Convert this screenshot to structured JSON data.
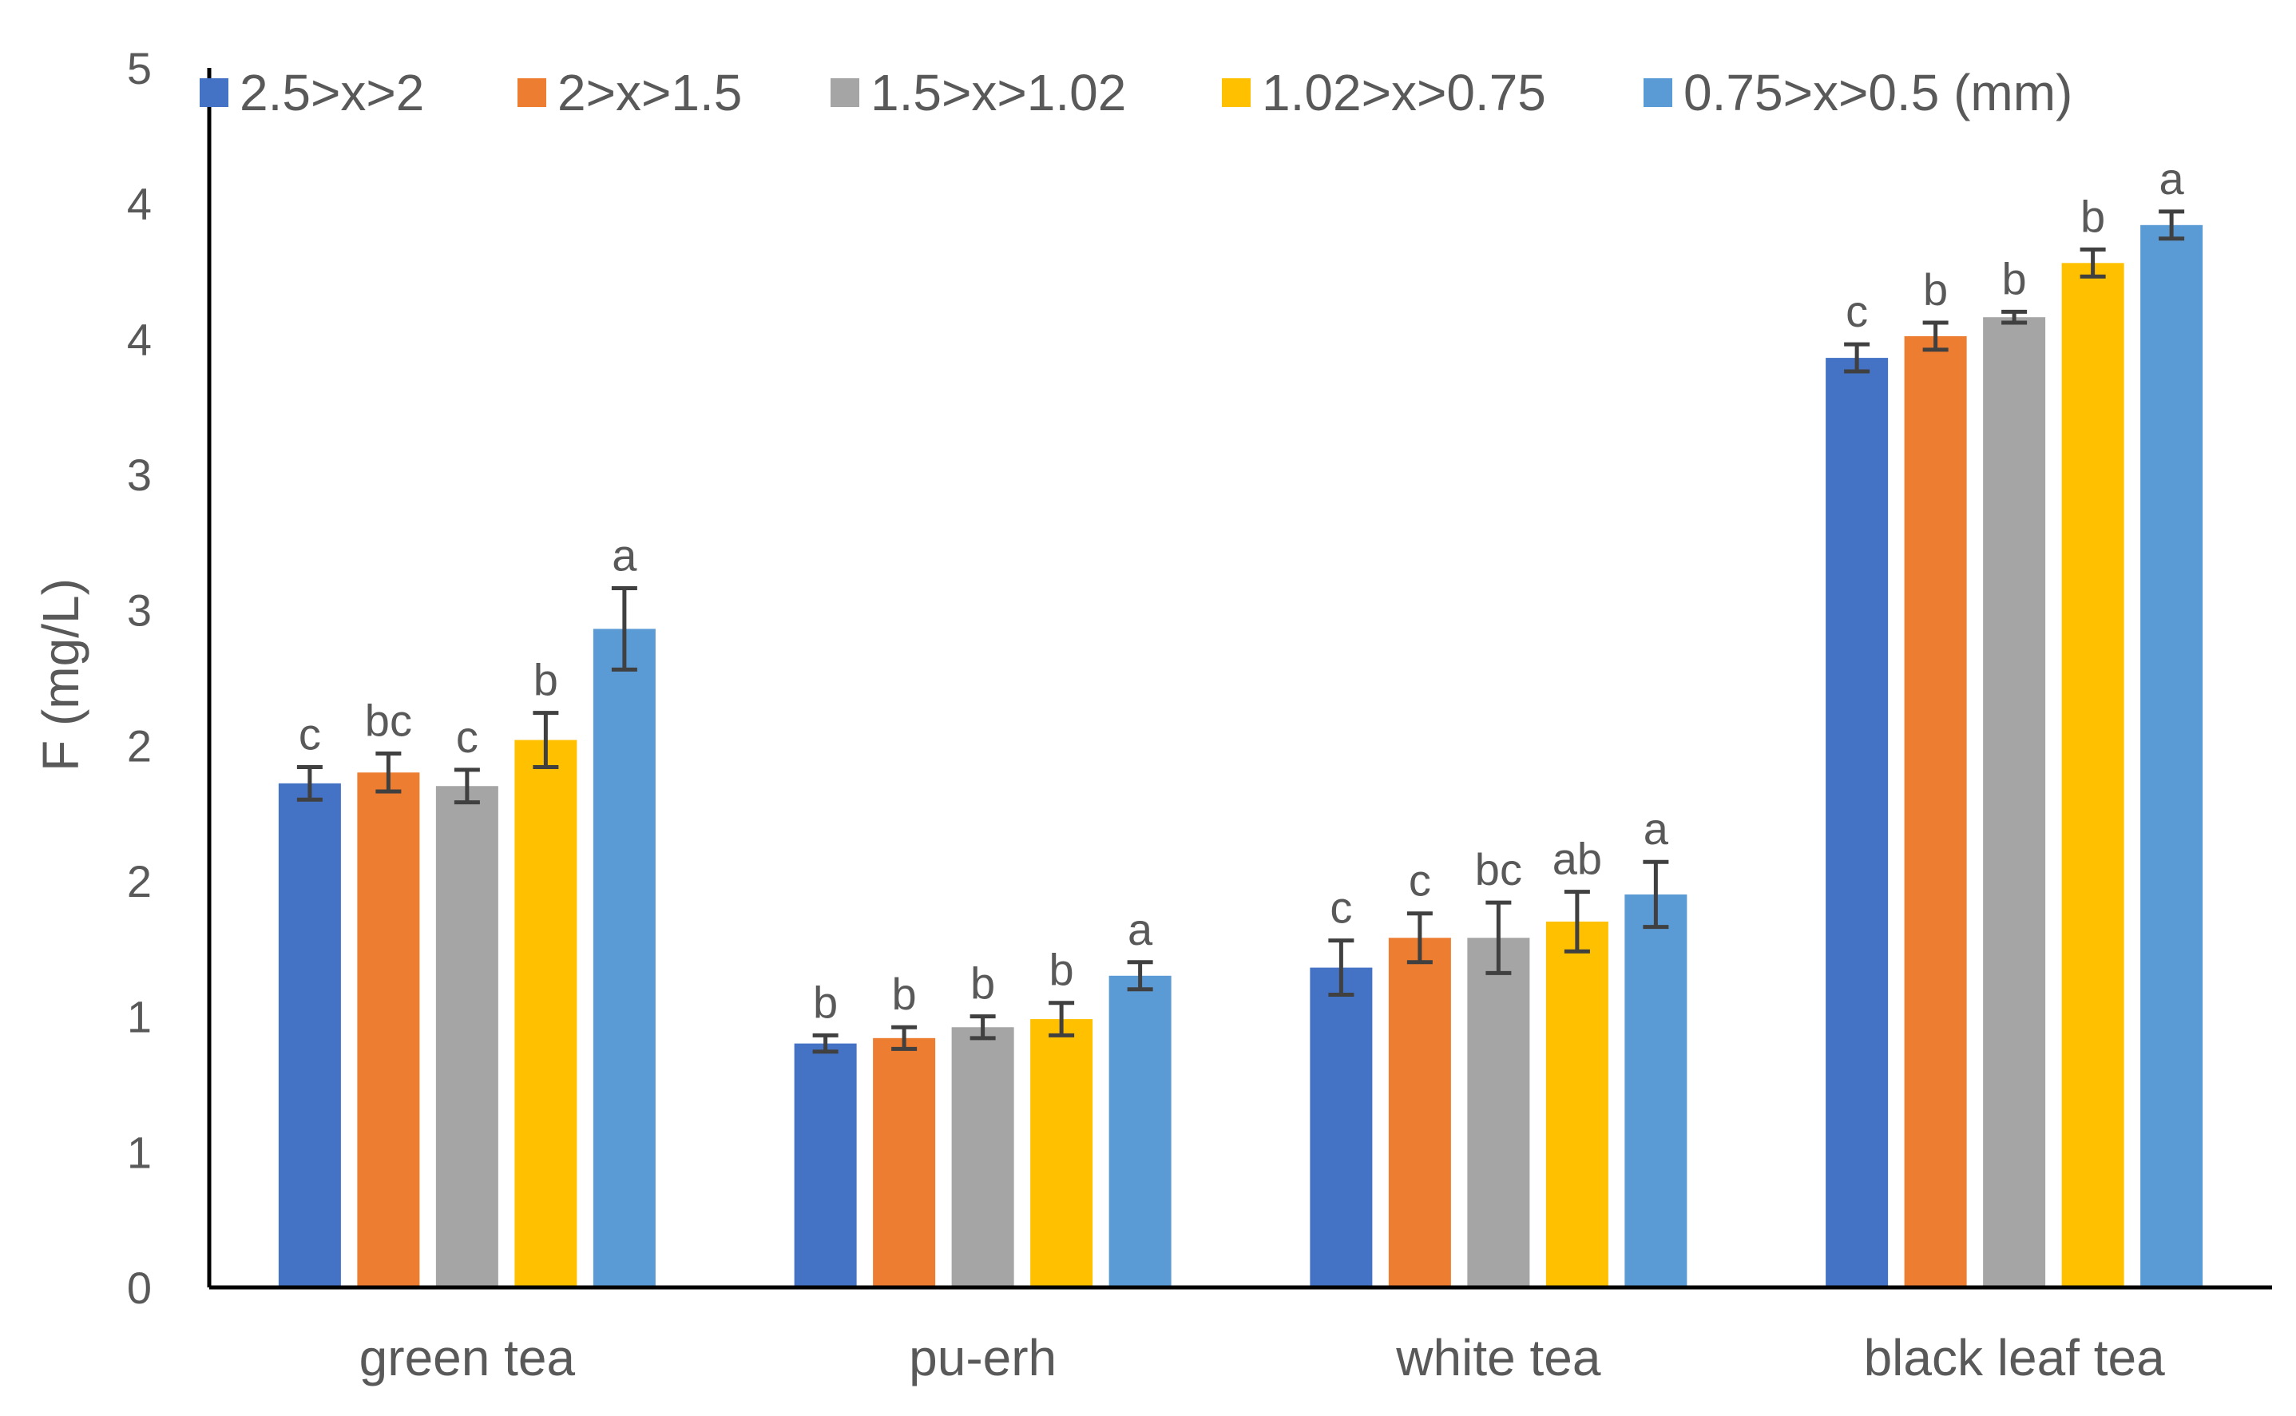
{
  "chart_data": {
    "type": "bar",
    "ylabel": "F (mg/L)",
    "xlabel": "",
    "ylim": [
      0,
      4.5
    ],
    "y_ticks": [
      0,
      0.5,
      1.0,
      1.5,
      2.0,
      2.5,
      3.0,
      3.5,
      4.0,
      4.5
    ],
    "y_tick_labels": [
      "0",
      "1",
      "1",
      "2",
      "2",
      "3",
      "3",
      "4",
      "4",
      "5"
    ],
    "grid": false,
    "legend_position": "top",
    "categories": [
      "green tea",
      "pu-erh",
      "white tea",
      "black leaf tea"
    ],
    "series": [
      {
        "name": "2.5>x>2",
        "color": "#4472C4",
        "values": [
          1.86,
          0.9,
          1.18,
          3.43
        ],
        "errors": [
          0.06,
          0.03,
          0.1,
          0.05
        ],
        "letters": [
          "c",
          "b",
          "c",
          "c"
        ]
      },
      {
        "name": "2>x>1.5",
        "color": "#ED7D31",
        "values": [
          1.9,
          0.92,
          1.29,
          3.51
        ],
        "errors": [
          0.07,
          0.04,
          0.09,
          0.05
        ],
        "letters": [
          "bc",
          "b",
          "c",
          "b"
        ]
      },
      {
        "name": "1.5>x>1.02",
        "color": "#A5A5A5",
        "values": [
          1.85,
          0.96,
          1.29,
          3.58
        ],
        "errors": [
          0.06,
          0.04,
          0.13,
          0.02
        ],
        "letters": [
          "c",
          "b",
          "bc",
          "b"
        ]
      },
      {
        "name": "1.02>x>0.75",
        "color": "#FFC000",
        "values": [
          2.02,
          0.99,
          1.35,
          3.78
        ],
        "errors": [
          0.1,
          0.06,
          0.11,
          0.05
        ],
        "letters": [
          "b",
          "b",
          "ab",
          "b"
        ]
      },
      {
        "name": "0.75>x>0.5 (mm)",
        "color": "#5B9BD5",
        "values": [
          2.43,
          1.15,
          1.45,
          3.92
        ],
        "errors": [
          0.15,
          0.05,
          0.12,
          0.05
        ],
        "letters": [
          "a",
          "a",
          "a",
          "a"
        ]
      }
    ]
  }
}
